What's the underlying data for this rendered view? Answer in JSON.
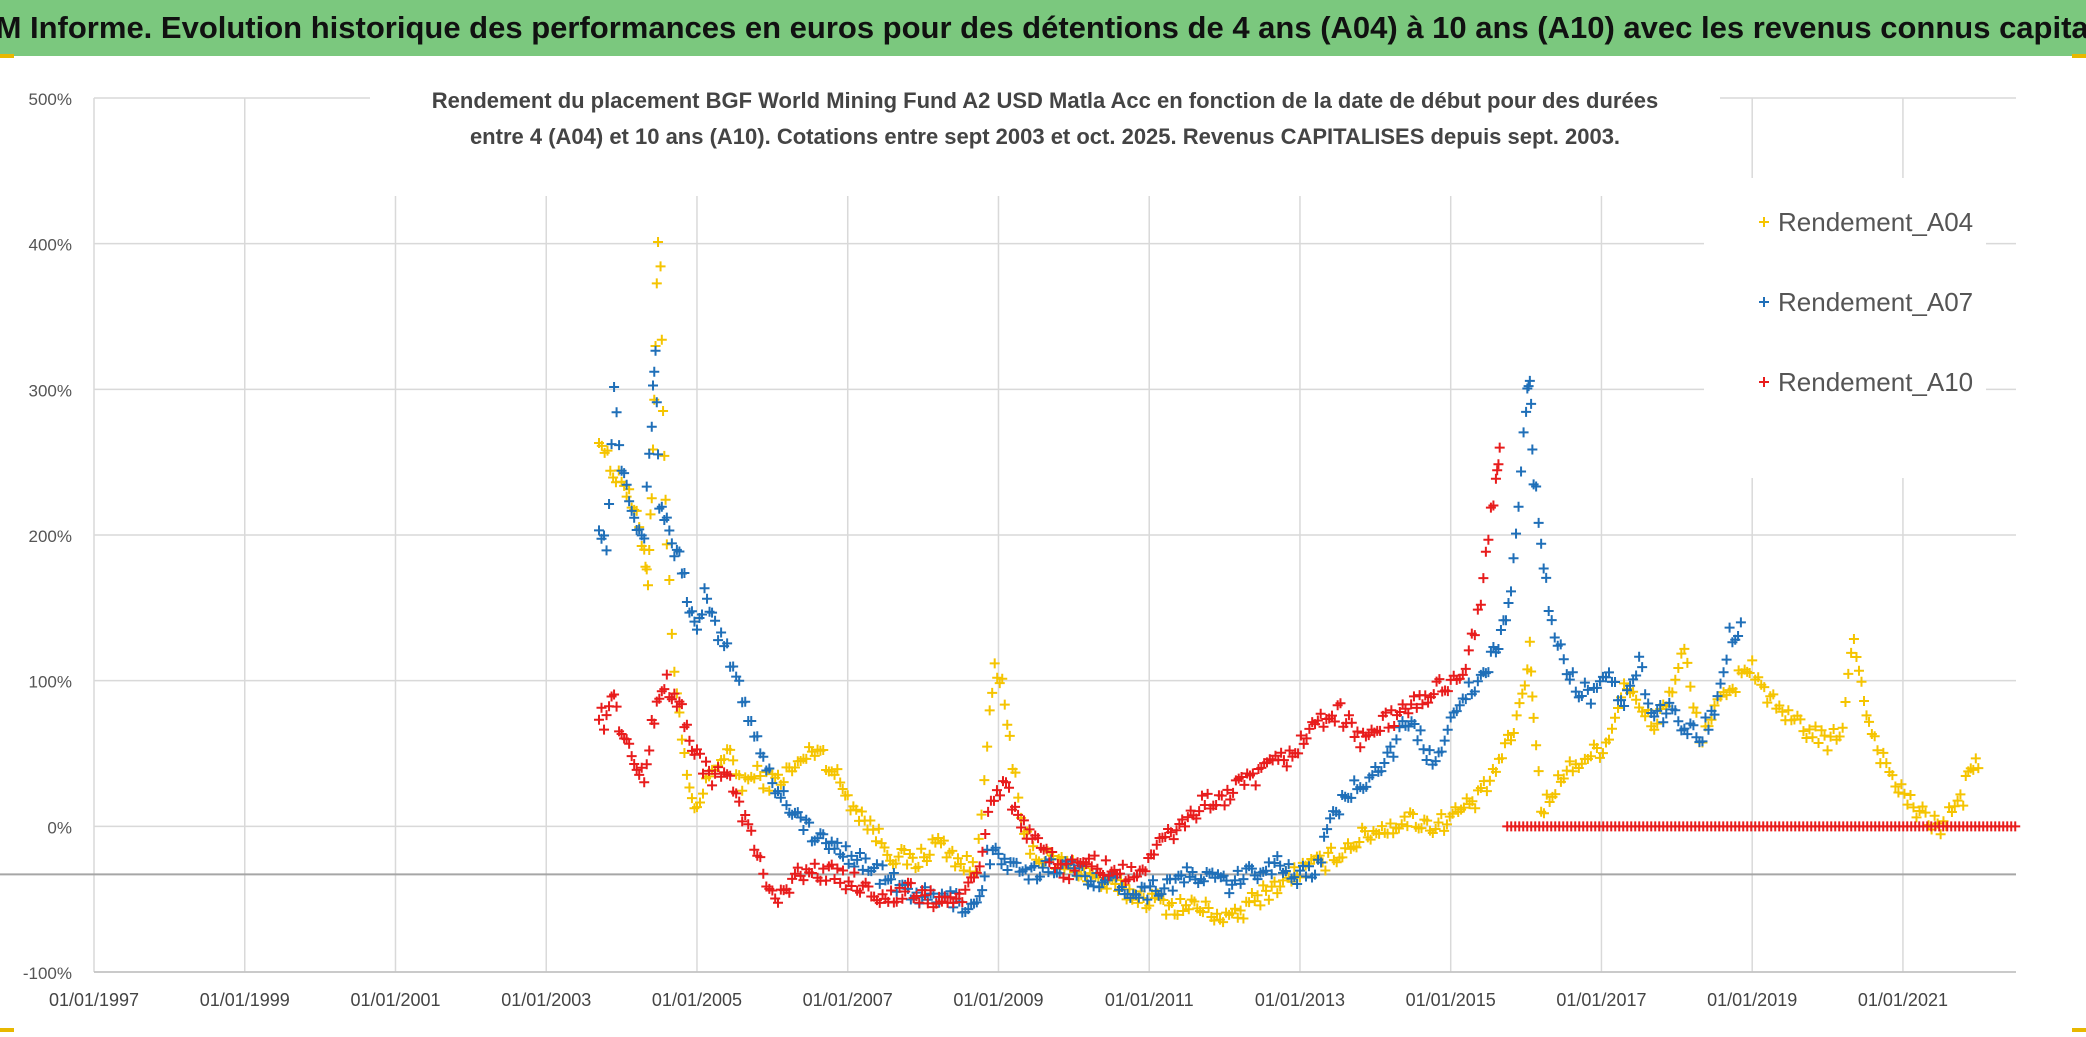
{
  "banner": {
    "text": "ADAM Informe. Evolution historique des performances en euros pour des détentions de 4 ans (A04) à 10 ans (A10) avec les revenus connus capitalisés",
    "bg_color": "#7bc87e"
  },
  "chart_data": {
    "type": "scatter",
    "title_line1": "Rendement du placement BGF World Mining Fund A2 USD Matla Acc en fonction de la date de début pour des durées",
    "title_line2": "entre 4 (A04) et 10 ans (A10). Cotations entre sept 2003 et oct. 2025. Revenus CAPITALISES depuis sept. 2003.",
    "xlabel": "",
    "ylabel": "",
    "xlim": [
      1997.0,
      2022.5
    ],
    "ylim": [
      -100,
      500
    ],
    "x_ticks": [
      1997,
      1999,
      2001,
      2003,
      2005,
      2007,
      2009,
      2011,
      2013,
      2015,
      2017,
      2019,
      2021
    ],
    "x_tick_labels": [
      "01/01/1997",
      "01/01/1999",
      "01/01/2001",
      "01/01/2003",
      "01/01/2005",
      "01/01/2007",
      "01/01/2009",
      "01/01/2011",
      "01/01/2013",
      "01/01/2015",
      "01/01/2017",
      "01/01/2019",
      "01/01/2021"
    ],
    "y_ticks": [
      -100,
      0,
      100,
      200,
      300,
      400,
      500
    ],
    "y_tick_labels": [
      "-100%",
      "0%",
      "100%",
      "200%",
      "300%",
      "400%",
      "500%"
    ],
    "reference_line_y": -33,
    "grid": true,
    "marker": "+",
    "legend_position": "right",
    "series": [
      {
        "name": "Rendement_A04",
        "color": "#f5c400",
        "x": [
          2003.7,
          2003.85,
          2004.0,
          2004.1,
          2004.2,
          2004.3,
          2004.35,
          2004.4,
          2004.45,
          2004.5,
          2004.55,
          2004.6,
          2004.7,
          2004.8,
          2004.9,
          2005.0,
          2005.2,
          2005.4,
          2005.6,
          2005.8,
          2006.0,
          2006.3,
          2006.6,
          2006.9,
          2007.0,
          2007.3,
          2007.6,
          2007.9,
          2008.2,
          2008.5,
          2008.7,
          2008.85,
          2008.95,
          2009.05,
          2009.15,
          2009.3,
          2009.5,
          2009.8,
          2010.1,
          2010.4,
          2010.7,
          2011.0,
          2011.3,
          2011.6,
          2011.9,
          2012.1,
          2012.4,
          2012.7,
          2013.0,
          2013.3,
          2013.6,
          2013.9,
          2014.2,
          2014.5,
          2014.8,
          2015.1,
          2015.4,
          2015.6,
          2015.8,
          2015.95,
          2016.05,
          2016.1,
          2016.2,
          2016.35,
          2016.5,
          2016.7,
          2016.9,
          2017.1,
          2017.3,
          2017.5,
          2017.7,
          2017.9,
          2018.1,
          2018.3,
          2018.5,
          2018.7,
          2018.9,
          2019.0,
          2019.2,
          2019.4,
          2019.6,
          2019.8,
          2020.0,
          2020.2,
          2020.35,
          2020.45,
          2020.55,
          2020.7,
          2020.9,
          2021.1,
          2021.3,
          2021.5,
          2021.65,
          2021.8,
          2021.9,
          2022.0
        ],
        "y": [
          270,
          245,
          240,
          225,
          210,
          190,
          170,
          230,
          330,
          440,
          280,
          200,
          100,
          60,
          20,
          10,
          40,
          50,
          30,
          35,
          30,
          40,
          55,
          30,
          20,
          0,
          -20,
          -25,
          -10,
          -25,
          -30,
          60,
          105,
          95,
          60,
          0,
          -20,
          -25,
          -30,
          -40,
          -45,
          -50,
          -55,
          -55,
          -60,
          -65,
          -50,
          -40,
          -30,
          -25,
          -15,
          -5,
          0,
          5,
          0,
          10,
          20,
          40,
          60,
          90,
          120,
          80,
          10,
          25,
          35,
          45,
          50,
          60,
          100,
          80,
          70,
          90,
          120,
          60,
          80,
          90,
          110,
          110,
          90,
          75,
          70,
          65,
          55,
          70,
          130,
          100,
          70,
          50,
          30,
          15,
          5,
          0,
          10,
          20,
          45,
          40
        ]
      },
      {
        "name": "Rendement_A07",
        "color": "#1f6fb8",
        "x": [
          2003.7,
          2003.8,
          2003.9,
          2004.0,
          2004.1,
          2004.2,
          2004.3,
          2004.4,
          2004.45,
          2004.5,
          2004.6,
          2004.7,
          2004.8,
          2004.9,
          2005.0,
          2005.1,
          2005.2,
          2005.4,
          2005.6,
          2005.8,
          2006.0,
          2006.3,
          2006.6,
          2006.9,
          2007.2,
          2007.5,
          2007.8,
          2008.1,
          2008.4,
          2008.6,
          2008.75,
          2008.85,
          2009.0,
          2009.2,
          2009.4,
          2009.7,
          2010.0,
          2010.3,
          2010.6,
          2010.9,
          2011.2,
          2011.5,
          2011.8,
          2012.1,
          2012.4,
          2012.7,
          2013.0,
          2013.2,
          2013.4,
          2013.6,
          2013.8,
          2014.0,
          2014.2,
          2014.4,
          2014.6,
          2014.8,
          2015.0,
          2015.2,
          2015.4,
          2015.5,
          2015.6,
          2015.7,
          2015.8,
          2015.9,
          2016.0,
          2016.05,
          2016.1,
          2016.2,
          2016.3,
          2016.5,
          2016.7,
          2016.9,
          2017.1,
          2017.3,
          2017.5,
          2017.7,
          2017.9,
          2018.1,
          2018.3,
          2018.5,
          2018.7,
          2018.85
        ],
        "y": [
          210,
          190,
          300,
          250,
          230,
          210,
          200,
          280,
          330,
          220,
          210,
          190,
          180,
          150,
          130,
          160,
          140,
          120,
          90,
          60,
          30,
          10,
          -10,
          -15,
          -25,
          -35,
          -45,
          -50,
          -50,
          -55,
          -50,
          -20,
          -20,
          -30,
          -35,
          -25,
          -30,
          -35,
          -40,
          -45,
          -40,
          -35,
          -35,
          -40,
          -30,
          -25,
          -35,
          -30,
          0,
          20,
          30,
          40,
          50,
          70,
          60,
          40,
          80,
          90,
          100,
          110,
          120,
          140,
          160,
          220,
          290,
          310,
          240,
          200,
          150,
          110,
          95,
          90,
          100,
          85,
          110,
          75,
          80,
          70,
          60,
          80,
          130,
          140
        ]
      },
      {
        "name": "Rendement_A10",
        "color": "#e81c1c",
        "x": [
          2003.7,
          2003.8,
          2003.9,
          2004.0,
          2004.1,
          2004.2,
          2004.3,
          2004.4,
          2004.5,
          2004.6,
          2004.7,
          2004.8,
          2004.9,
          2005.0,
          2005.2,
          2005.4,
          2005.6,
          2005.8,
          2006.0,
          2006.3,
          2006.6,
          2006.9,
          2007.2,
          2007.5,
          2007.8,
          2008.1,
          2008.4,
          2008.6,
          2008.75,
          2008.9,
          2009.1,
          2009.3,
          2009.6,
          2009.9,
          2010.2,
          2010.5,
          2010.8,
          2011.1,
          2011.4,
          2011.7,
          2012.0,
          2012.3,
          2012.6,
          2012.9,
          2013.2,
          2013.5,
          2013.8,
          2014.1,
          2014.4,
          2014.7,
          2015.0,
          2015.2,
          2015.4,
          2015.5,
          2015.6,
          2015.65
        ],
        "y": [
          80,
          70,
          95,
          60,
          55,
          40,
          30,
          70,
          90,
          100,
          85,
          80,
          60,
          50,
          30,
          40,
          10,
          -20,
          -50,
          -35,
          -30,
          -35,
          -40,
          -50,
          -45,
          -50,
          -50,
          -45,
          -30,
          20,
          30,
          0,
          -20,
          -30,
          -25,
          -30,
          -35,
          -15,
          0,
          15,
          20,
          30,
          40,
          50,
          70,
          80,
          60,
          70,
          80,
          90,
          100,
          110,
          150,
          200,
          240,
          260
        ]
      },
      {
        "name": "Rendement_A10 (zero)",
        "color": "#e81c1c",
        "x_start": 2015.75,
        "x_end": 2022.5,
        "y_constant": 0
      }
    ]
  }
}
